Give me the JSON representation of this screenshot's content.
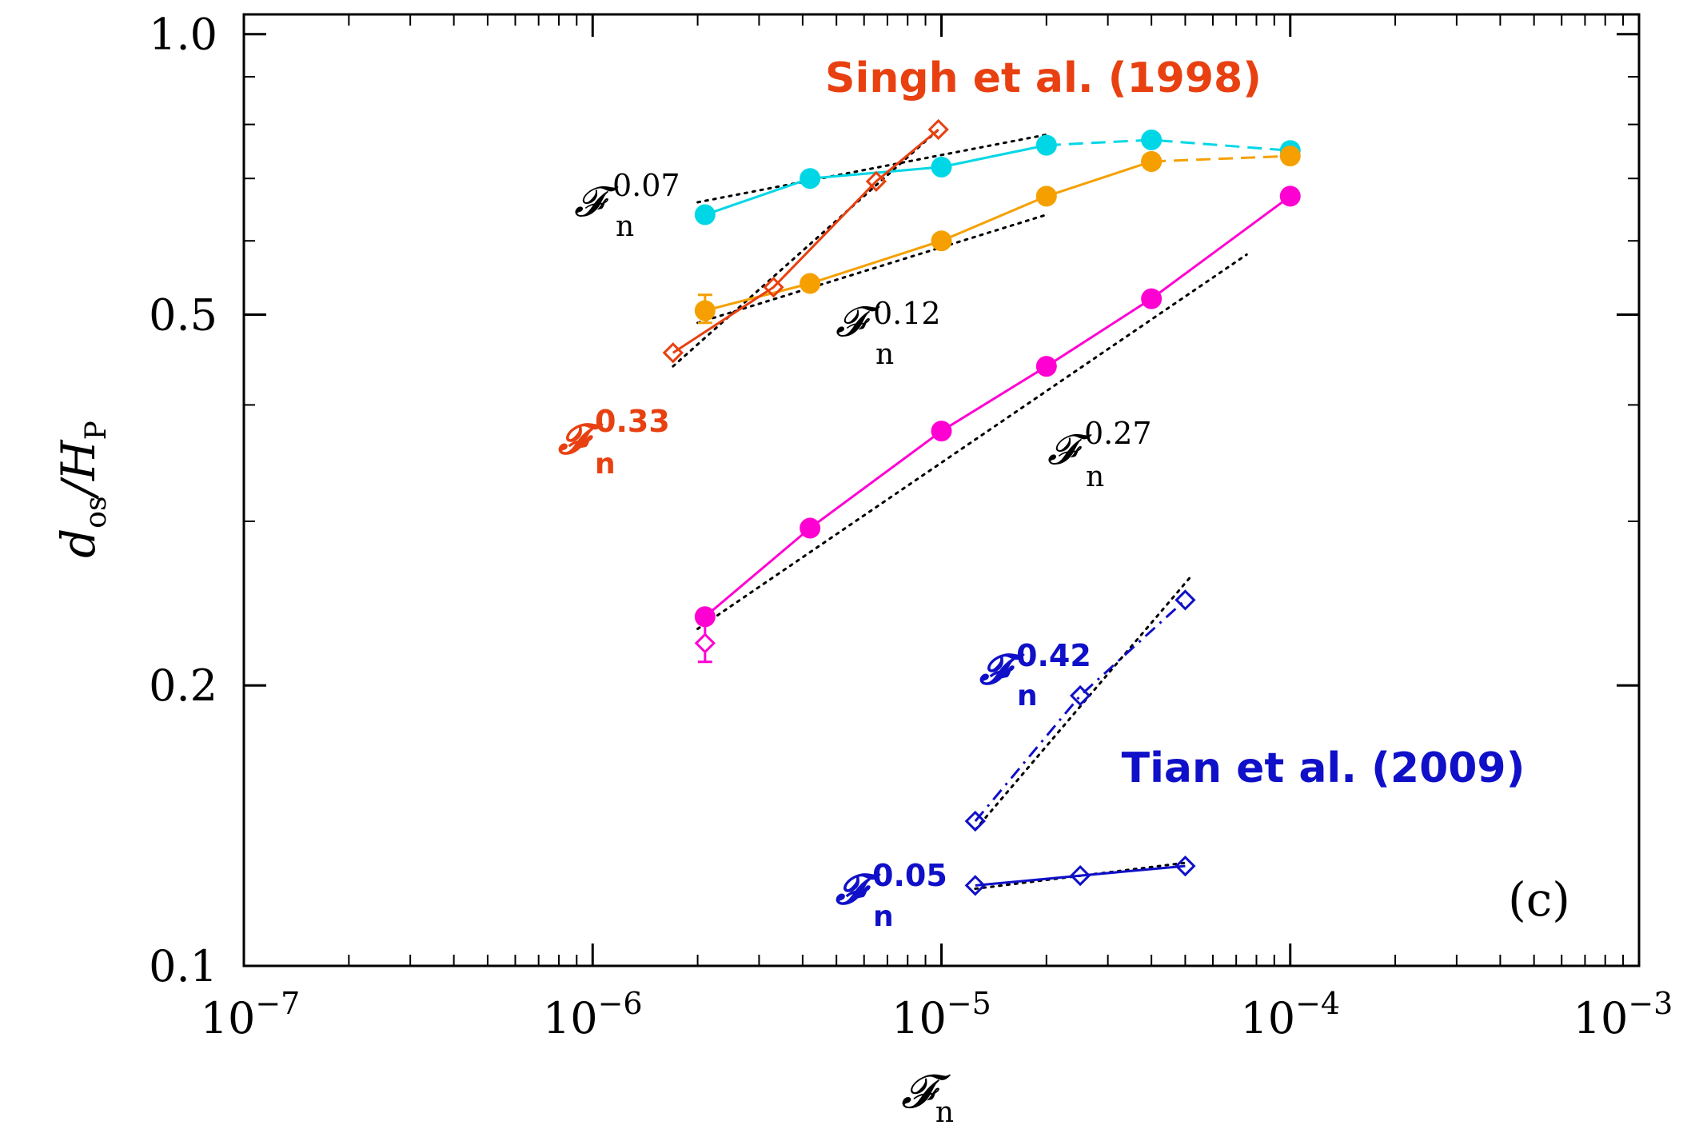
{
  "chart_data": {
    "type": "line",
    "panel_label": "(c)",
    "xscale": "log",
    "yscale": "log",
    "xlim": [
      1e-07,
      0.001
    ],
    "ylim": [
      0.1,
      1.05
    ],
    "x_ticks": [
      {
        "value": 1e-07,
        "base": "10",
        "exp": "−7"
      },
      {
        "value": 1e-06,
        "base": "10",
        "exp": "−6"
      },
      {
        "value": 1e-05,
        "base": "10",
        "exp": "−5"
      },
      {
        "value": 0.0001,
        "base": "10",
        "exp": "−4"
      },
      {
        "value": 0.001,
        "base": "10",
        "exp": "−3"
      }
    ],
    "y_ticks": [
      {
        "value": 1.0,
        "label": "1.0"
      },
      {
        "value": 0.5,
        "label": "0.5"
      },
      {
        "value": 0.2,
        "label": "0.2"
      },
      {
        "value": 0.1,
        "label": "0.1"
      }
    ],
    "xlabel": {
      "main": "𝓕",
      "sub": "n"
    },
    "ylabel": {
      "main": "d",
      "sub": "os",
      "mid": "/H",
      "sub2": "P"
    },
    "series": [
      {
        "name": "cyan",
        "color": "#00d7e6",
        "marker": "filled-circle",
        "style": "solid",
        "x": [
          2.1e-06,
          4.2e-06,
          1e-05,
          2e-05
        ],
        "y": [
          0.64,
          0.7,
          0.72,
          0.76
        ]
      },
      {
        "name": "cyan-extension",
        "color": "#00d7e6",
        "marker": "filled-circle",
        "style": "dashed",
        "x": [
          2e-05,
          4e-05,
          0.0001
        ],
        "y": [
          0.76,
          0.77,
          0.75
        ]
      },
      {
        "name": "orange",
        "color": "#f5a000",
        "marker": "filled-circle",
        "style": "solid",
        "x": [
          2.1e-06,
          4.2e-06,
          1e-05,
          2e-05,
          4e-05
        ],
        "y": [
          0.505,
          0.54,
          0.6,
          0.67,
          0.73
        ]
      },
      {
        "name": "orange-extension",
        "color": "#f5a000",
        "marker": "filled-circle",
        "style": "dashed",
        "x": [
          4e-05,
          0.0001
        ],
        "y": [
          0.73,
          0.74
        ]
      },
      {
        "name": "magenta",
        "color": "#ff00d2",
        "marker": "filled-circle",
        "style": "solid",
        "x": [
          2.1e-06,
          4.2e-06,
          1e-05,
          2e-05,
          4e-05,
          0.0001
        ],
        "y": [
          0.237,
          0.295,
          0.375,
          0.44,
          0.52,
          0.67
        ]
      },
      {
        "name": "Singh et al. (1998)",
        "color": "#e84010",
        "marker": "open-diamond",
        "style": "solid",
        "x": [
          1.7e-06,
          3.3e-06,
          6.5e-06,
          9.8e-06
        ],
        "y": [
          0.455,
          0.535,
          0.695,
          0.79
        ]
      },
      {
        "name": "Tian et al. (2009) upper",
        "color": "#1010c8",
        "marker": "open-diamond",
        "style": "dashdot",
        "x": [
          1.25e-05,
          2.5e-05,
          5e-05
        ],
        "y": [
          0.143,
          0.195,
          0.247
        ]
      },
      {
        "name": "Tian et al. (2009) lower",
        "color": "#1010c8",
        "marker": "open-diamond",
        "style": "solid",
        "x": [
          1.25e-05,
          2.5e-05,
          5e-05
        ],
        "y": [
          0.122,
          0.125,
          0.128
        ]
      }
    ],
    "extra_points": [
      {
        "name": "magenta-diamond",
        "color": "#ff00d2",
        "marker": "open-diamond",
        "x": 2.1e-06,
        "y": 0.222,
        "err": [
          0.212,
          0.233
        ]
      },
      {
        "name": "orange-errorbar",
        "color": "#f5a000",
        "x": 2.1e-06,
        "y": 0.505,
        "err": [
          0.49,
          0.525
        ]
      }
    ],
    "fits": [
      {
        "name": "fit-0.07",
        "x": [
          2e-06,
          2e-05
        ],
        "y": [
          0.66,
          0.78
        ]
      },
      {
        "name": "fit-0.12",
        "x": [
          2e-06,
          2e-05
        ],
        "y": [
          0.49,
          0.64
        ]
      },
      {
        "name": "fit-0.33",
        "x": [
          1.7e-06,
          1e-05
        ],
        "y": [
          0.44,
          0.795
        ]
      },
      {
        "name": "fit-0.27",
        "x": [
          2e-06,
          7.5e-05
        ],
        "y": [
          0.23,
          0.58
        ]
      },
      {
        "name": "fit-0.42",
        "x": [
          1.25e-05,
          5.2e-05
        ],
        "y": [
          0.14,
          0.262
        ]
      },
      {
        "name": "fit-0.05",
        "x": [
          1.25e-05,
          5e-05
        ],
        "y": [
          0.121,
          0.129
        ]
      }
    ],
    "annotations": [
      {
        "name": "label-singh",
        "text": "Singh et al. (1998)",
        "color": "#e84010",
        "kind": "title"
      },
      {
        "name": "label-tian",
        "text": "Tian et al. (2009)",
        "color": "#1010c8",
        "kind": "title"
      },
      {
        "name": "power-0.07",
        "sym": "𝓕",
        "sub": "n",
        "exp": "0.07",
        "color": "#000000",
        "bold": false
      },
      {
        "name": "power-0.12",
        "sym": "𝓕",
        "sub": "n",
        "exp": "0.12",
        "color": "#000000",
        "bold": false
      },
      {
        "name": "power-0.33",
        "sym": "𝓕",
        "sub": "n",
        "exp": "0.33",
        "color": "#e84010",
        "bold": true
      },
      {
        "name": "power-0.27",
        "sym": "𝓕",
        "sub": "n",
        "exp": "0.27",
        "color": "#000000",
        "bold": false
      },
      {
        "name": "power-0.42",
        "sym": "𝓕",
        "sub": "n",
        "exp": "0.42",
        "color": "#1010c8",
        "bold": true
      },
      {
        "name": "power-0.05",
        "sym": "𝓕",
        "sub": "n",
        "exp": "0.05",
        "color": "#1010c8",
        "bold": true
      }
    ]
  }
}
